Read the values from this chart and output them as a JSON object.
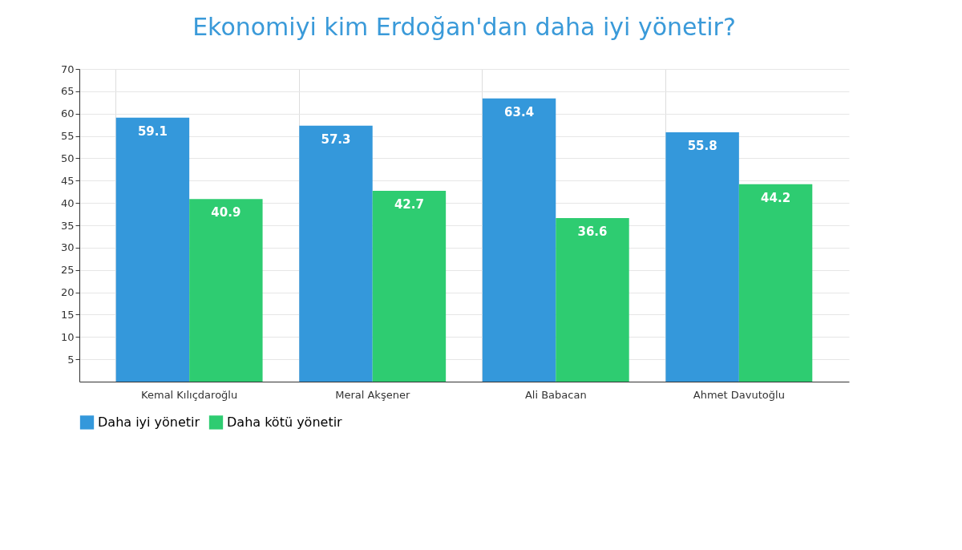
{
  "chart_data": {
    "type": "bar",
    "title": "Ekonomiyi kim Erdoğan'dan daha iyi yönetir?",
    "categories": [
      "Kemal Kılıçdaroğlu",
      "Meral Akşener",
      "Ali Babacan",
      "Ahmet Davutoğlu"
    ],
    "series": [
      {
        "name": "Daha iyi yönetir",
        "color": "#3498db",
        "values": [
          59.1,
          57.3,
          63.4,
          55.8
        ]
      },
      {
        "name": "Daha kötü yönetir",
        "color": "#2ecc71",
        "values": [
          40.9,
          42.7,
          36.6,
          44.2
        ]
      }
    ],
    "ylim": [
      0,
      70
    ],
    "yticks": [
      5,
      10,
      15,
      20,
      25,
      30,
      35,
      40,
      45,
      50,
      55,
      60,
      65,
      70
    ],
    "grid": true,
    "legend": "bottom",
    "data_labels": true
  }
}
